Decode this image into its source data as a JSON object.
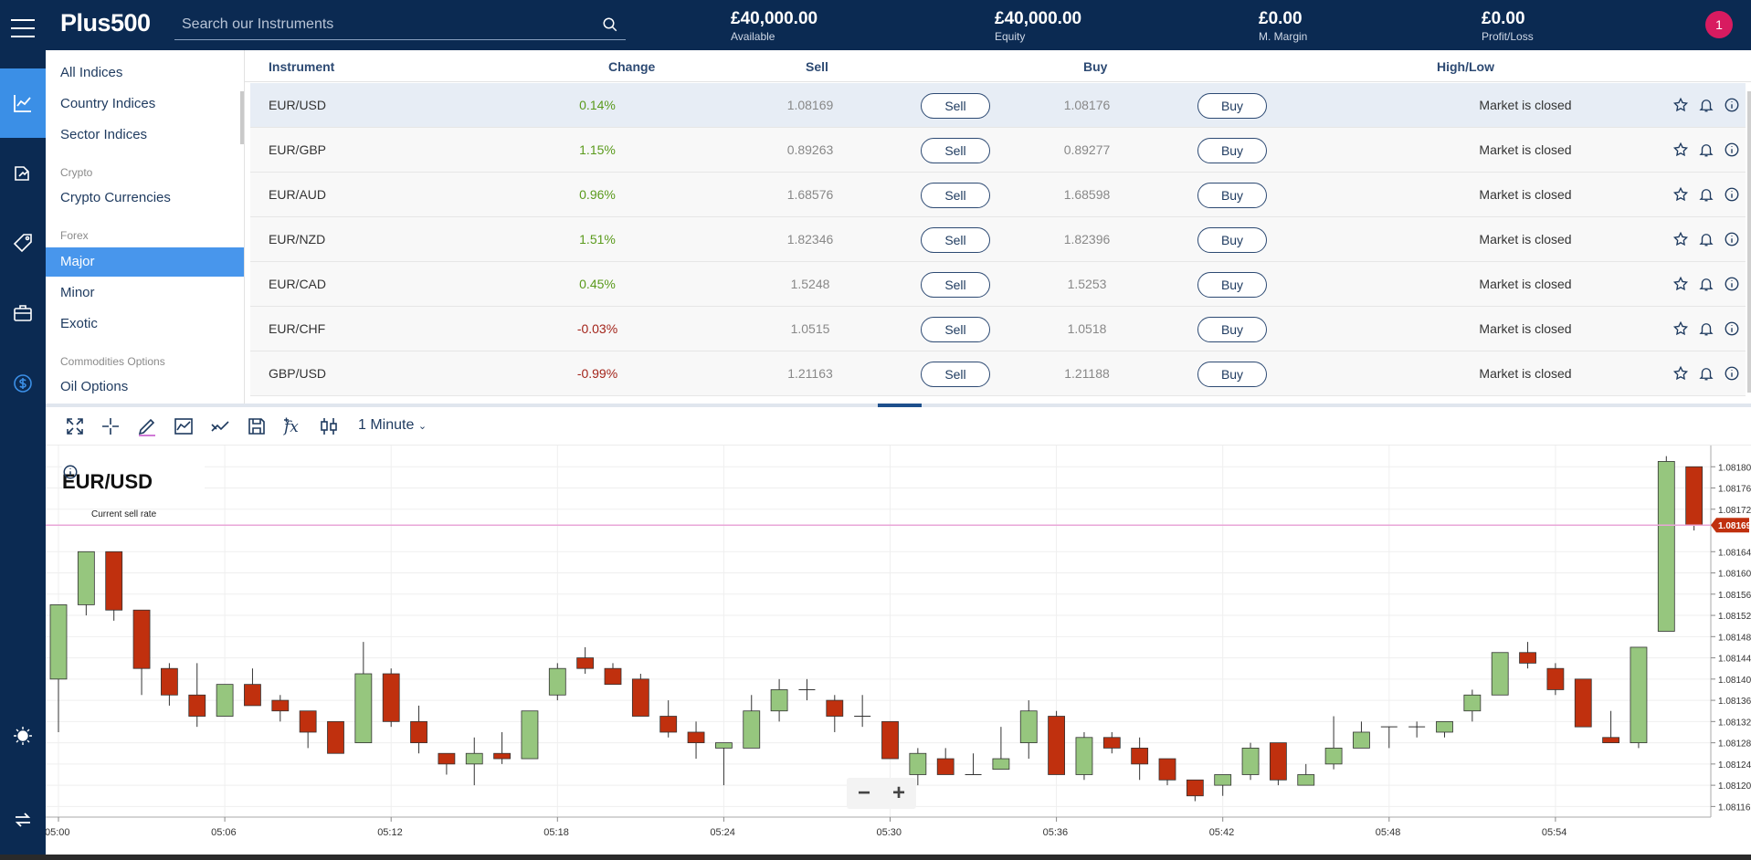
{
  "header": {
    "logo": "Plus500",
    "search_placeholder": "Search our Instruments",
    "stats": [
      {
        "value": "£40,000.00",
        "label": "Available"
      },
      {
        "value": "£40,000.00",
        "label": "Equity"
      },
      {
        "value": "£0.00",
        "label": "M. Margin"
      },
      {
        "value": "£0.00",
        "label": "Profit/Loss"
      }
    ],
    "notification_count": "1"
  },
  "sidebar": {
    "items": [
      {
        "label": "All Indices"
      },
      {
        "label": "Country Indices"
      },
      {
        "label": "Sector Indices"
      },
      {
        "label": "Crypto Currencies"
      },
      {
        "label": "Major"
      },
      {
        "label": "Minor"
      },
      {
        "label": "Exotic"
      },
      {
        "label": "Oil Options"
      }
    ],
    "categories": [
      "Crypto",
      "Forex",
      "Commodities Options"
    ]
  },
  "table": {
    "headers": {
      "instrument": "Instrument",
      "change": "Change",
      "sell": "Sell",
      "buy": "Buy",
      "highlow": "High/Low"
    },
    "sell_label": "Sell",
    "buy_label": "Buy",
    "rows": [
      {
        "name": "EUR/USD",
        "change": "0.14%",
        "sell": "1.08169",
        "buy": "1.08176",
        "status": "Market is closed"
      },
      {
        "name": "EUR/GBP",
        "change": "1.15%",
        "sell": "0.89263",
        "buy": "0.89277",
        "status": "Market is closed"
      },
      {
        "name": "EUR/AUD",
        "change": "0.96%",
        "sell": "1.68576",
        "buy": "1.68598",
        "status": "Market is closed"
      },
      {
        "name": "EUR/NZD",
        "change": "1.51%",
        "sell": "1.82346",
        "buy": "1.82396",
        "status": "Market is closed"
      },
      {
        "name": "EUR/CAD",
        "change": "0.45%",
        "sell": "1.5248",
        "buy": "1.5253",
        "status": "Market is closed"
      },
      {
        "name": "EUR/CHF",
        "change": "-0.03%",
        "sell": "1.0515",
        "buy": "1.0518",
        "status": "Market is closed"
      },
      {
        "name": "GBP/USD",
        "change": "-0.99%",
        "sell": "1.21163",
        "buy": "1.21188",
        "status": "Market is closed"
      }
    ]
  },
  "chart_toolbar": {
    "timeframe": "1 Minute"
  },
  "chart": {
    "title": "EUR/USD",
    "current_label": "Current sell rate",
    "current_value": "1.08169",
    "zoom_out": "−",
    "zoom_in": "+"
  },
  "colors": {
    "up": "#96c67e",
    "down": "#c0300e",
    "accent": "#3b8fe6",
    "navy": "#0b2a52"
  },
  "chart_data": {
    "type": "candlestick",
    "instrument": "EUR/USD",
    "interval": "1 Minute",
    "x_ticks": [
      "05:00",
      "05:06",
      "05:12",
      "05:18",
      "05:24",
      "05:30",
      "05:36",
      "05:42",
      "05:48",
      "05:54"
    ],
    "y_ticks": [
      1.08116,
      1.0812,
      1.08124,
      1.08128,
      1.08132,
      1.08136,
      1.0814,
      1.08144,
      1.08148,
      1.08152,
      1.08156,
      1.0816,
      1.08164,
      1.08172,
      1.08176,
      1.0818
    ],
    "ylim": [
      1.08114,
      1.08184
    ],
    "current_sell_rate": 1.08169,
    "candles": [
      {
        "t": "05:00",
        "o": 1.0814,
        "h": 1.08154,
        "l": 1.0813,
        "c": 1.08154
      },
      {
        "t": "05:01",
        "o": 1.08154,
        "h": 1.08164,
        "l": 1.08152,
        "c": 1.08164
      },
      {
        "t": "05:02",
        "o": 1.08164,
        "h": 1.08164,
        "l": 1.08151,
        "c": 1.08153
      },
      {
        "t": "05:03",
        "o": 1.08153,
        "h": 1.08153,
        "l": 1.08137,
        "c": 1.08142
      },
      {
        "t": "05:04",
        "o": 1.08142,
        "h": 1.08143,
        "l": 1.08135,
        "c": 1.08137
      },
      {
        "t": "05:05",
        "o": 1.08137,
        "h": 1.08143,
        "l": 1.08131,
        "c": 1.08133
      },
      {
        "t": "05:06",
        "o": 1.08133,
        "h": 1.08139,
        "l": 1.08133,
        "c": 1.08139
      },
      {
        "t": "05:07",
        "o": 1.08139,
        "h": 1.08142,
        "l": 1.08135,
        "c": 1.08135
      },
      {
        "t": "05:08",
        "o": 1.08136,
        "h": 1.08137,
        "l": 1.08132,
        "c": 1.08134
      },
      {
        "t": "05:09",
        "o": 1.08134,
        "h": 1.08134,
        "l": 1.08127,
        "c": 1.0813
      },
      {
        "t": "05:10",
        "o": 1.08132,
        "h": 1.08132,
        "l": 1.08126,
        "c": 1.08126
      },
      {
        "t": "05:11",
        "o": 1.08128,
        "h": 1.08147,
        "l": 1.08128,
        "c": 1.08141
      },
      {
        "t": "05:12",
        "o": 1.08141,
        "h": 1.08142,
        "l": 1.08131,
        "c": 1.08132
      },
      {
        "t": "05:13",
        "o": 1.08132,
        "h": 1.08135,
        "l": 1.08126,
        "c": 1.08128
      },
      {
        "t": "05:14",
        "o": 1.08126,
        "h": 1.08126,
        "l": 1.08122,
        "c": 1.08124
      },
      {
        "t": "05:15",
        "o": 1.08124,
        "h": 1.08129,
        "l": 1.0812,
        "c": 1.08126
      },
      {
        "t": "05:16",
        "o": 1.08126,
        "h": 1.0813,
        "l": 1.08124,
        "c": 1.08125
      },
      {
        "t": "05:17",
        "o": 1.08125,
        "h": 1.08134,
        "l": 1.08125,
        "c": 1.08134
      },
      {
        "t": "05:18",
        "o": 1.08137,
        "h": 1.08143,
        "l": 1.08136,
        "c": 1.08142
      },
      {
        "t": "05:19",
        "o": 1.08144,
        "h": 1.08146,
        "l": 1.08141,
        "c": 1.08142
      },
      {
        "t": "05:20",
        "o": 1.08142,
        "h": 1.08143,
        "l": 1.08139,
        "c": 1.08139
      },
      {
        "t": "05:21",
        "o": 1.0814,
        "h": 1.08141,
        "l": 1.08133,
        "c": 1.08133
      },
      {
        "t": "05:22",
        "o": 1.08133,
        "h": 1.08136,
        "l": 1.08129,
        "c": 1.0813
      },
      {
        "t": "05:23",
        "o": 1.0813,
        "h": 1.08132,
        "l": 1.08125,
        "c": 1.08128
      },
      {
        "t": "05:24",
        "o": 1.08127,
        "h": 1.08128,
        "l": 1.0812,
        "c": 1.08128
      },
      {
        "t": "05:25",
        "o": 1.08127,
        "h": 1.08137,
        "l": 1.08127,
        "c": 1.08134
      },
      {
        "t": "05:26",
        "o": 1.08134,
        "h": 1.0814,
        "l": 1.08132,
        "c": 1.08138
      },
      {
        "t": "05:27",
        "o": 1.08138,
        "h": 1.0814,
        "l": 1.08136,
        "c": 1.08138
      },
      {
        "t": "05:28",
        "o": 1.08136,
        "h": 1.08137,
        "l": 1.0813,
        "c": 1.08133
      },
      {
        "t": "05:29",
        "o": 1.08133,
        "h": 1.08137,
        "l": 1.08131,
        "c": 1.08133
      },
      {
        "t": "05:30",
        "o": 1.08132,
        "h": 1.08132,
        "l": 1.08125,
        "c": 1.08125
      },
      {
        "t": "05:31",
        "o": 1.08122,
        "h": 1.08127,
        "l": 1.0812,
        "c": 1.08126
      },
      {
        "t": "05:32",
        "o": 1.08125,
        "h": 1.08127,
        "l": 1.08122,
        "c": 1.08122
      },
      {
        "t": "05:33",
        "o": 1.08122,
        "h": 1.08126,
        "l": 1.08122,
        "c": 1.08122
      },
      {
        "t": "05:34",
        "o": 1.08123,
        "h": 1.08131,
        "l": 1.08123,
        "c": 1.08125
      },
      {
        "t": "05:35",
        "o": 1.08128,
        "h": 1.08136,
        "l": 1.08125,
        "c": 1.08134
      },
      {
        "t": "05:36",
        "o": 1.08133,
        "h": 1.08134,
        "l": 1.08122,
        "c": 1.08122
      },
      {
        "t": "05:37",
        "o": 1.08122,
        "h": 1.0813,
        "l": 1.08121,
        "c": 1.08129
      },
      {
        "t": "05:38",
        "o": 1.08129,
        "h": 1.0813,
        "l": 1.08126,
        "c": 1.08127
      },
      {
        "t": "05:39",
        "o": 1.08127,
        "h": 1.08129,
        "l": 1.08121,
        "c": 1.08124
      },
      {
        "t": "05:40",
        "o": 1.08125,
        "h": 1.08125,
        "l": 1.0812,
        "c": 1.08121
      },
      {
        "t": "05:41",
        "o": 1.08121,
        "h": 1.08121,
        "l": 1.08117,
        "c": 1.08118
      },
      {
        "t": "05:42",
        "o": 1.0812,
        "h": 1.08122,
        "l": 1.08118,
        "c": 1.08122
      },
      {
        "t": "05:43",
        "o": 1.08122,
        "h": 1.08128,
        "l": 1.08121,
        "c": 1.08127
      },
      {
        "t": "05:44",
        "o": 1.08128,
        "h": 1.08128,
        "l": 1.0812,
        "c": 1.08121
      },
      {
        "t": "05:45",
        "o": 1.0812,
        "h": 1.08124,
        "l": 1.0812,
        "c": 1.08122
      },
      {
        "t": "05:46",
        "o": 1.08124,
        "h": 1.08133,
        "l": 1.08123,
        "c": 1.08127
      },
      {
        "t": "05:47",
        "o": 1.08127,
        "h": 1.08132,
        "l": 1.08127,
        "c": 1.0813
      },
      {
        "t": "05:48",
        "o": 1.08131,
        "h": 1.08131,
        "l": 1.08127,
        "c": 1.08131
      },
      {
        "t": "05:49",
        "o": 1.08131,
        "h": 1.08132,
        "l": 1.08129,
        "c": 1.08131
      },
      {
        "t": "05:50",
        "o": 1.0813,
        "h": 1.08132,
        "l": 1.08129,
        "c": 1.08132
      },
      {
        "t": "05:51",
        "o": 1.08134,
        "h": 1.08138,
        "l": 1.08132,
        "c": 1.08137
      },
      {
        "t": "05:52",
        "o": 1.08137,
        "h": 1.08145,
        "l": 1.08137,
        "c": 1.08145
      },
      {
        "t": "05:53",
        "o": 1.08145,
        "h": 1.08147,
        "l": 1.08142,
        "c": 1.08143
      },
      {
        "t": "05:54",
        "o": 1.08142,
        "h": 1.08143,
        "l": 1.08137,
        "c": 1.08138
      },
      {
        "t": "05:55",
        "o": 1.0814,
        "h": 1.0814,
        "l": 1.08131,
        "c": 1.08131
      },
      {
        "t": "05:56",
        "o": 1.08129,
        "h": 1.08134,
        "l": 1.08128,
        "c": 1.08128
      },
      {
        "t": "05:57",
        "o": 1.08128,
        "h": 1.08146,
        "l": 1.08127,
        "c": 1.08146
      },
      {
        "t": "05:58",
        "o": 1.08149,
        "h": 1.08182,
        "l": 1.08149,
        "c": 1.08181
      },
      {
        "t": "05:59",
        "o": 1.0818,
        "h": 1.0818,
        "l": 1.08168,
        "c": 1.08169
      }
    ]
  }
}
